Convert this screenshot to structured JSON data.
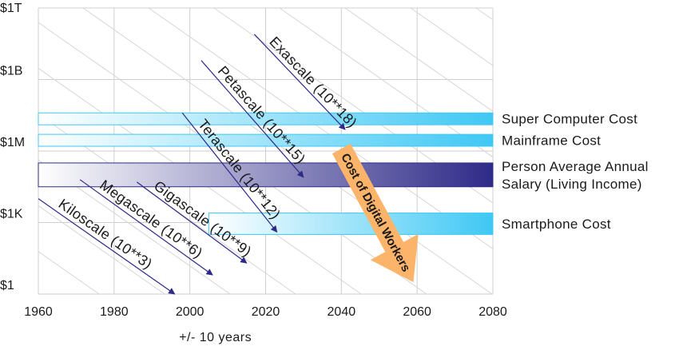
{
  "chart_data": {
    "type": "line",
    "xlabel": "+/- 10 years",
    "x_ticks": [
      "1960",
      "1980",
      "2000",
      "2020",
      "2040",
      "2060",
      "2080"
    ],
    "y_ticks": [
      "$1",
      "$1K",
      "$1M",
      "$1B",
      "$1T"
    ],
    "xlim": [
      1960,
      2080
    ],
    "ylim_log10": [
      0,
      12
    ],
    "grid": true,
    "bands": [
      {
        "name": "Super Computer Cost",
        "x_start": 1960,
        "x_end": 2080,
        "y_low_log10": 7.1,
        "y_high_log10": 7.6,
        "color": "#3fc8f4"
      },
      {
        "name": "Mainframe Cost",
        "x_start": 1960,
        "x_end": 2080,
        "y_low_log10": 6.2,
        "y_high_log10": 6.7,
        "color": "#3fc8f4"
      },
      {
        "name": "Person Average Annual Salary (Living Income)",
        "x_start": 1960,
        "x_end": 2080,
        "y_low_log10": 4.5,
        "y_high_log10": 5.5,
        "color": "#2e2a88"
      },
      {
        "name": "Smartphone Cost",
        "x_start": 2005,
        "x_end": 2080,
        "y_low_log10": 2.5,
        "y_high_log10": 3.4,
        "color": "#3fc8f4"
      }
    ],
    "series": [
      {
        "name": "Kiloscale (10**3)",
        "x": [
          1960,
          1996
        ],
        "y_log10": [
          4,
          0
        ]
      },
      {
        "name": "Megascale (10**6)",
        "x": [
          1971,
          2006
        ],
        "y_log10": [
          4.8,
          0.8
        ]
      },
      {
        "name": "Gigascale (10**9)",
        "x": [
          1986,
          2015
        ],
        "y_log10": [
          4.7,
          1.3
        ]
      },
      {
        "name": "Terascale (10**12)",
        "x": [
          1998,
          2023
        ],
        "y_log10": [
          7.6,
          2.6
        ]
      },
      {
        "name": "Petascale (10**15)",
        "x": [
          2003,
          2030
        ],
        "y_log10": [
          9.8,
          4.9
        ]
      },
      {
        "name": "Exascale (10**18)",
        "x": [
          2017,
          2041
        ],
        "y_log10": [
          10.9,
          6.9
        ]
      }
    ],
    "annotation": {
      "text": "Cost of Digital Workers",
      "color": "#fbb46a",
      "x_from": 2040,
      "y_from_log10": 6.1,
      "x_to": 2059,
      "y_to_log10": 0.5
    }
  }
}
